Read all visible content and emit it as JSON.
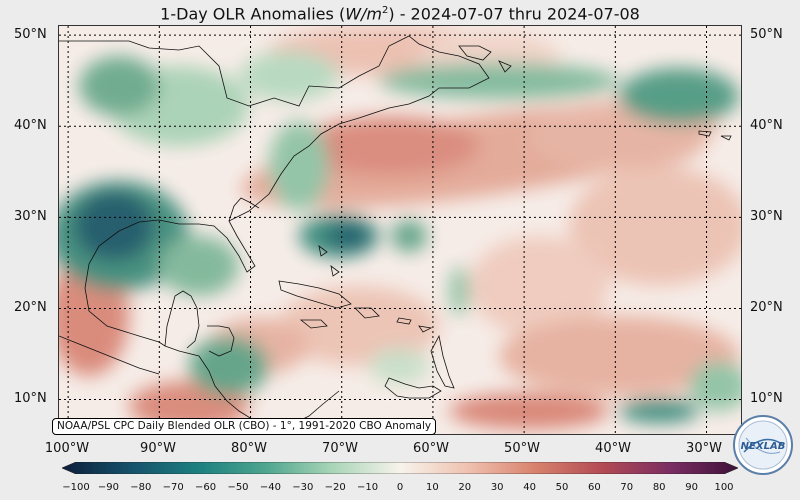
{
  "title": {
    "main": "1-Day OLR Anomalies (",
    "unit_base": "W/m",
    "unit_exp": "2",
    "dates": ") - 2024-07-07 thru 2024-07-08"
  },
  "map": {
    "lat_labels": [
      "50°N",
      "40°N",
      "30°N",
      "20°N",
      "10°N"
    ],
    "lat_values": [
      50,
      40,
      30,
      20,
      10
    ],
    "lon_labels": [
      "100°W",
      "90°W",
      "80°W",
      "70°W",
      "60°W",
      "50°W",
      "40°W",
      "30°W"
    ],
    "lon_values": [
      -100,
      -90,
      -80,
      -70,
      -60,
      -50,
      -40,
      -30
    ],
    "extent": {
      "lon_min": -101,
      "lon_max": -26,
      "lat_min": 6,
      "lat_max": 51
    },
    "caption": "NOAA/PSL CPC Daily Blended OLR (CBO) - 1°, 1991-2020 CBO Anomaly"
  },
  "colorbar": {
    "ticks": [
      "−100",
      "−90",
      "−80",
      "−70",
      "−60",
      "−50",
      "−40",
      "−30",
      "−20",
      "−10",
      "0",
      "10",
      "20",
      "30",
      "40",
      "50",
      "60",
      "70",
      "80",
      "90",
      "100"
    ],
    "min": -100,
    "max": 100,
    "stops": [
      "#0c1e3a",
      "#16506a",
      "#1c7f7f",
      "#4ea58f",
      "#a9d5b7",
      "#f7f3ec",
      "#efc2b0",
      "#d8826d",
      "#b24a54",
      "#7a2d63",
      "#3e1238"
    ]
  },
  "logo": {
    "text": "NEXLAB",
    "icon": "nexlab-logo-icon"
  },
  "colors": {
    "neutral": "#f6ece7",
    "negative_strong": "#1b5f65",
    "negative_mid": "#4f9a7d",
    "negative_weak": "#a8cfb3",
    "positive_weak": "#f0cbbd",
    "positive_mid": "#e0a08e",
    "positive_strong": "#c8685b"
  }
}
